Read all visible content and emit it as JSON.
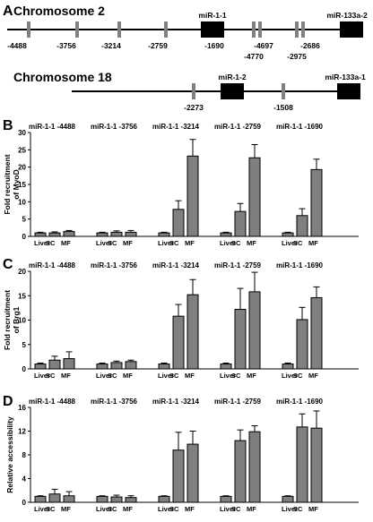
{
  "schematic": {
    "panel_label": "A",
    "chromosomes": [
      {
        "name": "Chromosome 2",
        "markers": [
          "-4488",
          "-3756",
          "-3214",
          "-2759",
          "-1690",
          "-4697",
          "-4770",
          "-2686",
          "-2975"
        ],
        "genes": [
          "miR-1-1",
          "miR-133a-2"
        ]
      },
      {
        "name": "Chromosome 18",
        "markers": [
          "-2273",
          "-1508"
        ],
        "genes": [
          "miR-1-2",
          "miR-133a-1"
        ]
      }
    ]
  },
  "chart_data": [
    {
      "type": "bar",
      "panel_label": "B",
      "ylabel": "Fold recruitment of MyoD",
      "ylim": [
        0,
        30
      ],
      "yticks": [
        0,
        5,
        10,
        15,
        20,
        25,
        30
      ],
      "groups": [
        "miR-1-1 -4488",
        "miR-1-1 -3756",
        "miR-1-1 -3214",
        "miR-1-1 -2759",
        "miR-1-1 -1690"
      ],
      "categories": [
        "Liver",
        "SC",
        "MF"
      ],
      "values": [
        [
          1.0,
          1.0,
          1.4
        ],
        [
          1.0,
          1.2,
          1.2
        ],
        [
          1.0,
          7.8,
          23.2
        ],
        [
          1.0,
          7.2,
          22.7
        ],
        [
          1.0,
          6.0,
          19.3
        ]
      ],
      "errors": [
        [
          0.2,
          0.3,
          0.3
        ],
        [
          0.2,
          0.4,
          0.5
        ],
        [
          0.2,
          2.5,
          4.8
        ],
        [
          0.2,
          2.3,
          3.8
        ],
        [
          0.2,
          2.0,
          3.0
        ]
      ]
    },
    {
      "type": "bar",
      "panel_label": "C",
      "ylabel": "Fold recruitment of Brg1",
      "ylim": [
        0,
        20
      ],
      "yticks": [
        0,
        5,
        10,
        15,
        20
      ],
      "groups": [
        "miR-1-1 -4488",
        "miR-1-1 -3756",
        "miR-1-1 -3214",
        "miR-1-1 -2759",
        "miR-1-1 -1690"
      ],
      "categories": [
        "Liver",
        "SC",
        "MF"
      ],
      "values": [
        [
          1.0,
          1.8,
          2.1
        ],
        [
          1.0,
          1.3,
          1.5
        ],
        [
          1.0,
          10.8,
          15.2
        ],
        [
          1.0,
          12.2,
          15.8
        ],
        [
          1.0,
          10.1,
          14.6
        ]
      ],
      "errors": [
        [
          0.2,
          0.8,
          1.4
        ],
        [
          0.2,
          0.3,
          0.3
        ],
        [
          0.2,
          2.4,
          3.1
        ],
        [
          0.2,
          4.3,
          4.0
        ],
        [
          0.2,
          2.5,
          2.2
        ]
      ]
    },
    {
      "type": "bar",
      "panel_label": "D",
      "ylabel": "Relative accessibility",
      "ylim": [
        0,
        16
      ],
      "yticks": [
        0,
        4,
        8,
        12,
        16
      ],
      "groups": [
        "miR-1-1 -4488",
        "miR-1-1 -3756",
        "miR-1-1 -3214",
        "miR-1-1 -2759",
        "miR-1-1 -1690"
      ],
      "categories": [
        "Liver",
        "SC",
        "MF"
      ],
      "values": [
        [
          1.0,
          1.4,
          1.1
        ],
        [
          1.0,
          0.9,
          0.8
        ],
        [
          1.0,
          8.8,
          9.8
        ],
        [
          1.0,
          10.4,
          11.9
        ],
        [
          1.0,
          12.7,
          12.5
        ]
      ],
      "errors": [
        [
          0.1,
          0.8,
          0.7
        ],
        [
          0.1,
          0.3,
          0.3
        ],
        [
          0.1,
          3.0,
          2.2
        ],
        [
          0.1,
          1.8,
          1.0
        ],
        [
          0.1,
          2.2,
          2.9
        ]
      ]
    }
  ]
}
